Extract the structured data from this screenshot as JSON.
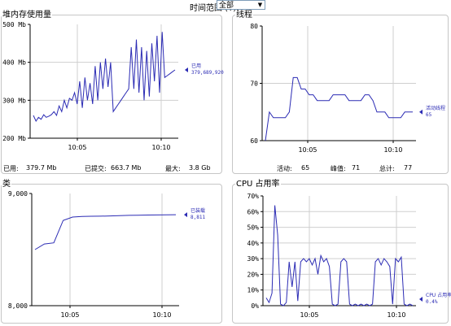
{
  "time_range": {
    "label": "时间范围 (T):",
    "value": "全部"
  },
  "panels": {
    "heap": {
      "title": "堆内存使用量",
      "footer": {
        "used_label": "已用:",
        "used_value": "379.7 Mb",
        "committed_label": "已提交:",
        "committed_value": "663.7 Mb",
        "max_label": "最大:",
        "max_value": "3.8 Gb"
      }
    },
    "threads": {
      "title": "线程",
      "footer": {
        "live_label": "活动:",
        "live_value": "65",
        "peak_label": "峰值:",
        "peak_value": "71",
        "total_label": "总计:",
        "total_value": "77"
      }
    },
    "classes": {
      "title": "类"
    },
    "cpu": {
      "title": "CPU 占用率"
    }
  },
  "chart_data": [
    {
      "id": "heap",
      "type": "line",
      "ylim": [
        200,
        500
      ],
      "yticks": [
        "200 Mb",
        "300 Mb",
        "400 Mb",
        "500 Mb"
      ],
      "xticks": [
        "10:05",
        "10:10"
      ],
      "series": [
        {
          "name": "已用",
          "value_label": "379,689,920",
          "color": "#2b2bb4",
          "values": [
            260,
            245,
            255,
            250,
            262,
            255,
            258,
            262,
            270,
            260,
            285,
            270,
            300,
            280,
            305,
            300,
            320,
            290,
            350,
            280,
            360,
            300,
            345,
            290,
            390,
            300,
            400,
            330,
            410,
            335,
            400,
            270,
            280,
            290,
            300,
            310,
            320,
            330,
            440,
            330,
            460,
            320,
            440,
            300,
            430,
            310,
            450,
            350,
            470,
            320,
            480,
            360,
            365,
            370,
            375,
            380
          ]
        }
      ]
    },
    {
      "id": "threads",
      "type": "line",
      "ylim": [
        60,
        80
      ],
      "yticks": [
        "60",
        "70",
        "80"
      ],
      "xticks": [
        "10:05",
        "10:10"
      ],
      "series": [
        {
          "name": "活动线程",
          "value_label": "65",
          "color": "#2b2bb4",
          "values": [
            60,
            65,
            64,
            64,
            64,
            64,
            65,
            71,
            71,
            69,
            69,
            68,
            68,
            67,
            67,
            67,
            67,
            68,
            68,
            68,
            68,
            67,
            67,
            67,
            67,
            68,
            68,
            67,
            65,
            65,
            65,
            64,
            64,
            64,
            64,
            65,
            65,
            65
          ]
        }
      ]
    },
    {
      "id": "classes",
      "type": "line",
      "ylim": [
        8000,
        9000
      ],
      "yticks": [
        "8,000",
        "9,000"
      ],
      "xticks": [
        "10:05",
        "10:10"
      ],
      "series": [
        {
          "name": "已装载",
          "value_label": "8,811",
          "color": "#2b2bb4",
          "values": [
            8500,
            8550,
            8560,
            8760,
            8790,
            8795,
            8797,
            8798,
            8800,
            8803,
            8805,
            8806,
            8808,
            8809,
            8810,
            8811
          ]
        }
      ]
    },
    {
      "id": "cpu",
      "type": "line",
      "ylim": [
        0,
        70
      ],
      "yticks": [
        "0%",
        "10%",
        "20%",
        "30%",
        "40%",
        "50%",
        "60%",
        "70%"
      ],
      "xticks": [
        "10:05",
        "10:10"
      ],
      "series": [
        {
          "name": "CPU 占用率",
          "value_label": "0.4%",
          "color": "#2b2bb4",
          "values": [
            5,
            2,
            8,
            64,
            45,
            1,
            0,
            2,
            28,
            12,
            28,
            3,
            28,
            30,
            28,
            30,
            26,
            30,
            20,
            32,
            28,
            30,
            25,
            1,
            0,
            1,
            28,
            30,
            28,
            1,
            0,
            1,
            0,
            1,
            0,
            1,
            0,
            1,
            28,
            30,
            26,
            30,
            28,
            25,
            1,
            30,
            28,
            31,
            1,
            0,
            1,
            0
          ]
        }
      ]
    }
  ]
}
